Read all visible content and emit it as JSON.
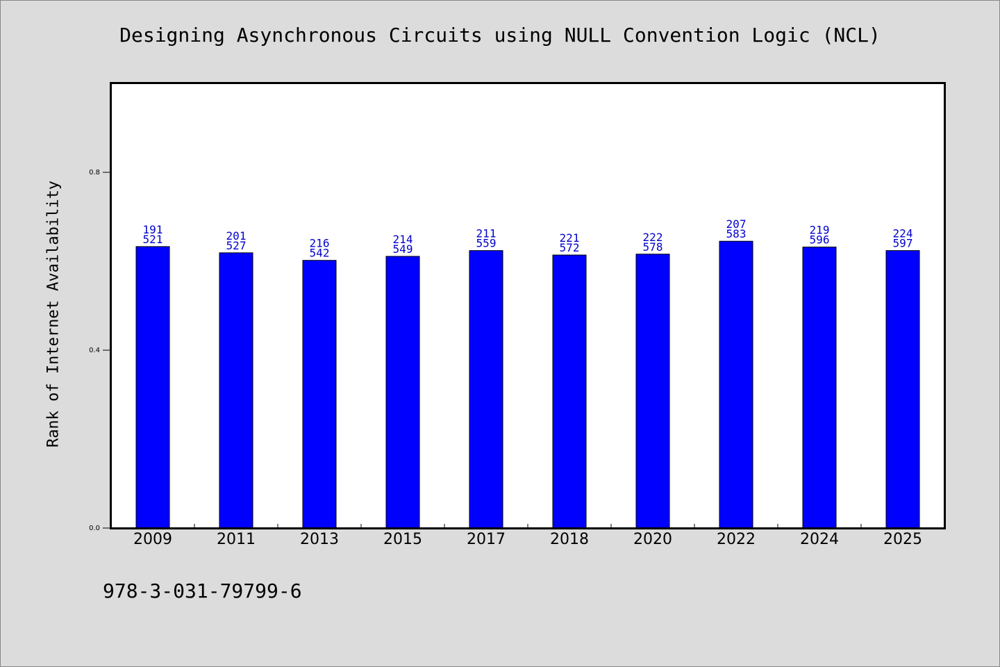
{
  "title": "Designing Asynchronous Circuits using NULL Convention Logic (NCL)",
  "footer_text": "978-3-031-79799-6",
  "colors": {
    "background": "#dcdcdc",
    "plot_background": "#ffffff",
    "bar": "#0000ff",
    "bar_label": "#0000cc"
  },
  "chart_data": {
    "type": "bar",
    "title": "Designing Asynchronous Circuits using NULL Convention Logic (NCL)",
    "xlabel": "",
    "ylabel": "Rank of Internet Availability",
    "ylim": [
      0,
      1.0
    ],
    "yticks": [
      0.0,
      0.4,
      0.8
    ],
    "ytick_labels": [
      "0.0",
      "0.4",
      "0.8"
    ],
    "grid": false,
    "categories": [
      "2009",
      "2011",
      "2013",
      "2015",
      "2017",
      "2018",
      "2020",
      "2022",
      "2024",
      "2025"
    ],
    "values": [
      0.633,
      0.619,
      0.602,
      0.611,
      0.624,
      0.614,
      0.616,
      0.645,
      0.632,
      0.624
    ],
    "bar_labels_top": [
      "191",
      "201",
      "216",
      "214",
      "211",
      "221",
      "222",
      "207",
      "219",
      "224"
    ],
    "bar_labels_bottom": [
      "521",
      "527",
      "542",
      "549",
      "559",
      "572",
      "578",
      "583",
      "596",
      "597"
    ]
  }
}
